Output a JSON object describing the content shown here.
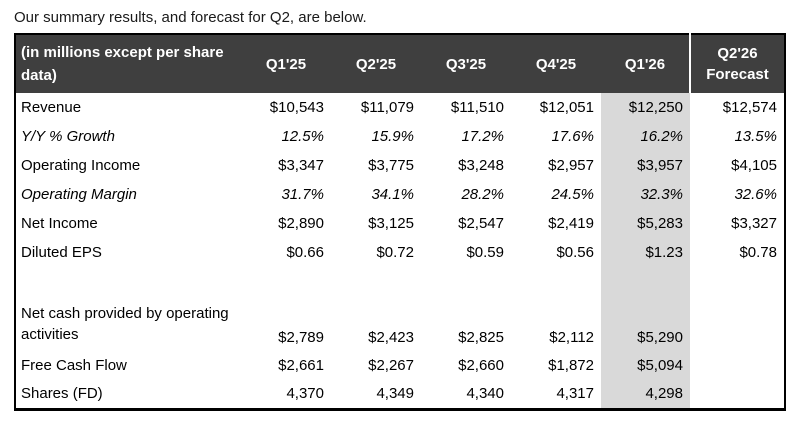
{
  "page": {
    "intro_text": "Our summary results, and forecast for Q2, are below."
  },
  "table": {
    "header": {
      "label": "(in millions except per share data)",
      "columns": [
        "Q1'25",
        "Q2'25",
        "Q3'25",
        "Q4'25",
        "Q1'26",
        "Q2'26\nForecast"
      ]
    },
    "highlight_column_index": 4,
    "forecast_column_index": 5,
    "rows": [
      {
        "label": "Revenue",
        "italic": false,
        "blank": false,
        "tall": false,
        "values": [
          "$10,543",
          "$11,079",
          "$11,510",
          "$12,051",
          "$12,250",
          "$12,574"
        ]
      },
      {
        "label": "Y/Y % Growth",
        "italic": true,
        "blank": false,
        "tall": false,
        "values": [
          "12.5%",
          "15.9%",
          "17.2%",
          "17.6%",
          "16.2%",
          "13.5%"
        ]
      },
      {
        "label": "Operating Income",
        "italic": false,
        "blank": false,
        "tall": false,
        "values": [
          "$3,347",
          "$3,775",
          "$3,248",
          "$2,957",
          "$3,957",
          "$4,105"
        ]
      },
      {
        "label": "Operating Margin",
        "italic": true,
        "blank": false,
        "tall": false,
        "values": [
          "31.7%",
          "34.1%",
          "28.2%",
          "24.5%",
          "32.3%",
          "32.6%"
        ]
      },
      {
        "label": "Net Income",
        "italic": false,
        "blank": false,
        "tall": false,
        "values": [
          "$2,890",
          "$3,125",
          "$2,547",
          "$2,419",
          "$5,283",
          "$3,327"
        ]
      },
      {
        "label": "Diluted EPS",
        "italic": false,
        "blank": false,
        "tall": false,
        "values": [
          "$0.66",
          "$0.72",
          "$0.59",
          "$0.56",
          "$1.23",
          "$0.78"
        ]
      },
      {
        "label": "",
        "italic": false,
        "blank": true,
        "tall": false,
        "values": [
          "",
          "",
          "",
          "",
          "",
          ""
        ]
      },
      {
        "label": "Net cash provided by operating activities",
        "italic": false,
        "blank": false,
        "tall": true,
        "values": [
          "$2,789",
          "$2,423",
          "$2,825",
          "$2,112",
          "$5,290",
          ""
        ]
      },
      {
        "label": "Free Cash Flow",
        "italic": false,
        "blank": false,
        "tall": false,
        "values": [
          "$2,661",
          "$2,267",
          "$2,660",
          "$1,872",
          "$5,094",
          ""
        ]
      },
      {
        "label": "Shares (FD)",
        "italic": false,
        "blank": false,
        "tall": false,
        "values": [
          "4,370",
          "4,349",
          "4,340",
          "4,317",
          "4,298",
          ""
        ]
      }
    ],
    "colors": {
      "header_bg": "#3f3f3f",
      "header_text": "#ffffff",
      "highlight_bg": "#d9d9d9",
      "border": "#000000"
    }
  }
}
